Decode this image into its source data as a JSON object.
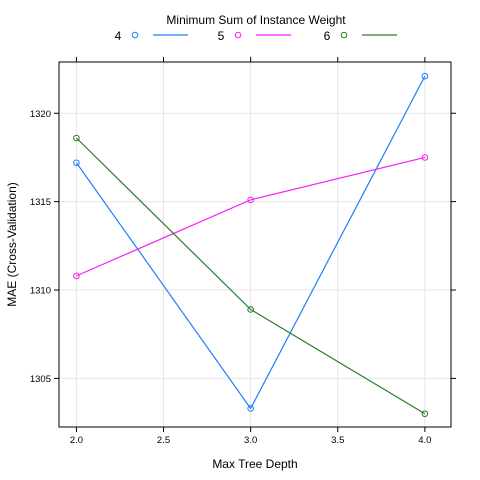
{
  "chart_data": {
    "type": "line",
    "legend_title": "Minimum Sum of Instance Weight",
    "legend_position": "top",
    "xlabel": "Max Tree Depth",
    "ylabel": "MAE (Cross-Validation)",
    "x": [
      2.0,
      3.0,
      4.0
    ],
    "xlim": [
      1.9,
      4.15
    ],
    "ylim": [
      1302.25,
      1322.9
    ],
    "x_ticks": [
      2.0,
      2.5,
      3.0,
      3.5,
      4.0
    ],
    "x_tick_labels": [
      "2.0",
      "2.5",
      "3.0",
      "3.5",
      "4.0"
    ],
    "y_ticks": [
      1305,
      1310,
      1315,
      1320
    ],
    "y_tick_labels": [
      "1305",
      "1310",
      "1315",
      "1320"
    ],
    "grid": true,
    "series": [
      {
        "name": "4",
        "values": [
          1317.2,
          1303.3,
          1322.1
        ],
        "color": "#1e7ff7"
      },
      {
        "name": "5",
        "values": [
          1310.8,
          1315.1,
          1317.5
        ],
        "color": "#f820f8"
      },
      {
        "name": "6",
        "values": [
          1318.6,
          1308.9,
          1303.0
        ],
        "color": "#2b7d2b"
      }
    ]
  }
}
